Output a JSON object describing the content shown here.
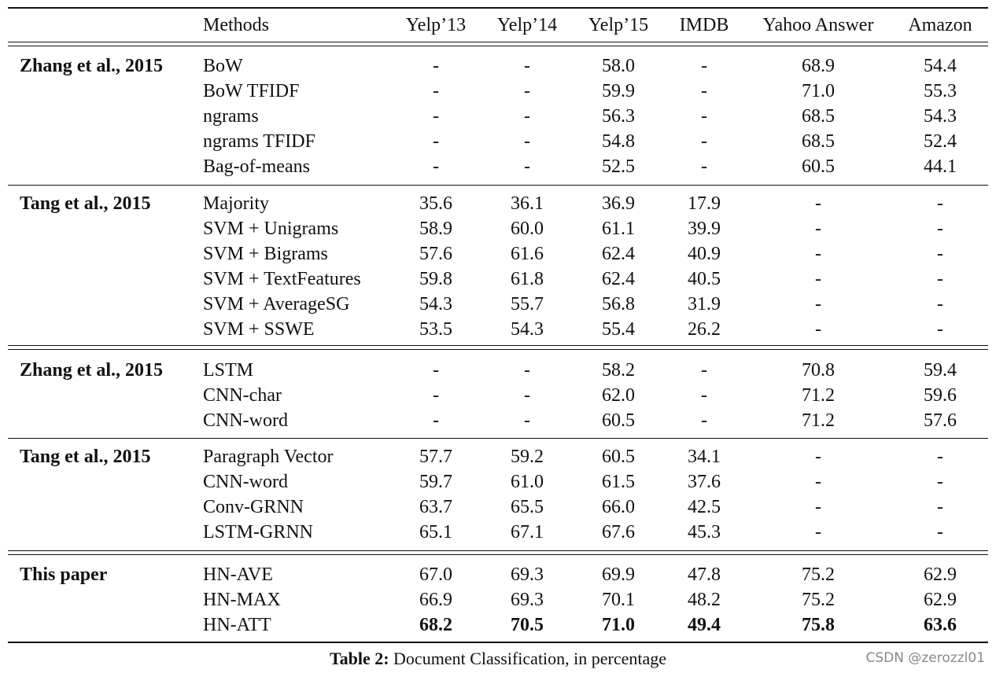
{
  "table": {
    "headers": [
      "Methods",
      "Yelp’13",
      "Yelp’14",
      "Yelp’15",
      "IMDB",
      "Yahoo Answer",
      "Amazon"
    ],
    "groups": [
      {
        "label": "Zhang et al., 2015",
        "rows": [
          {
            "method": "BoW",
            "values": [
              "-",
              "-",
              "58.0",
              "-",
              "68.9",
              "54.4"
            ]
          },
          {
            "method": "BoW TFIDF",
            "values": [
              "-",
              "-",
              "59.9",
              "-",
              "71.0",
              "55.3"
            ]
          },
          {
            "method": "ngrams",
            "values": [
              "-",
              "-",
              "56.3",
              "-",
              "68.5",
              "54.3"
            ]
          },
          {
            "method": "ngrams TFIDF",
            "values": [
              "-",
              "-",
              "54.8",
              "-",
              "68.5",
              "52.4"
            ]
          },
          {
            "method": "Bag-of-means",
            "values": [
              "-",
              "-",
              "52.5",
              "-",
              "60.5",
              "44.1"
            ]
          }
        ]
      },
      {
        "label": "Tang et al., 2015",
        "rows": [
          {
            "method": "Majority",
            "values": [
              "35.6",
              "36.1",
              "36.9",
              "17.9",
              "-",
              "-"
            ]
          },
          {
            "method": "SVM + Unigrams",
            "values": [
              "58.9",
              "60.0",
              "61.1",
              "39.9",
              "-",
              "-"
            ]
          },
          {
            "method": "SVM + Bigrams",
            "values": [
              "57.6",
              "61.6",
              "62.4",
              "40.9",
              "-",
              "-"
            ]
          },
          {
            "method": "SVM + TextFeatures",
            "values": [
              "59.8",
              "61.8",
              "62.4",
              "40.5",
              "-",
              "-"
            ]
          },
          {
            "method": "SVM + AverageSG",
            "values": [
              "54.3",
              "55.7",
              "56.8",
              "31.9",
              "-",
              "-"
            ]
          },
          {
            "method": "SVM + SSWE",
            "values": [
              "53.5",
              "54.3",
              "55.4",
              "26.2",
              "-",
              "-"
            ]
          }
        ]
      },
      {
        "label": "Zhang et al., 2015",
        "rows": [
          {
            "method": "LSTM",
            "values": [
              "-",
              "-",
              "58.2",
              "-",
              "70.8",
              "59.4"
            ]
          },
          {
            "method": "CNN-char",
            "values": [
              "-",
              "-",
              "62.0",
              "-",
              "71.2",
              "59.6"
            ]
          },
          {
            "method": "CNN-word",
            "values": [
              "-",
              "-",
              "60.5",
              "-",
              "71.2",
              "57.6"
            ]
          }
        ]
      },
      {
        "label": "Tang et al., 2015",
        "rows": [
          {
            "method": "Paragraph Vector",
            "values": [
              "57.7",
              "59.2",
              "60.5",
              "34.1",
              "-",
              "-"
            ]
          },
          {
            "method": "CNN-word",
            "values": [
              "59.7",
              "61.0",
              "61.5",
              "37.6",
              "-",
              "-"
            ]
          },
          {
            "method": "Conv-GRNN",
            "values": [
              "63.7",
              "65.5",
              "66.0",
              "42.5",
              "-",
              "-"
            ]
          },
          {
            "method": "LSTM-GRNN",
            "values": [
              "65.1",
              "67.1",
              "67.6",
              "45.3",
              "-",
              "-"
            ]
          }
        ]
      },
      {
        "label": "This paper",
        "rows": [
          {
            "method": "HN-AVE",
            "values": [
              "67.0",
              "69.3",
              "69.9",
              "47.8",
              "75.2",
              "62.9"
            ]
          },
          {
            "method": "HN-MAX",
            "values": [
              "66.9",
              "69.3",
              "70.1",
              "48.2",
              "75.2",
              "62.9"
            ]
          },
          {
            "method": "HN-ATT",
            "values": [
              "68.2",
              "70.5",
              "71.0",
              "49.4",
              "75.8",
              "63.6"
            ],
            "bold": true
          }
        ]
      }
    ]
  },
  "caption": {
    "label": "Table 2:",
    "text": " Document Classification, in percentage"
  },
  "watermark": "CSDN @zerozzl01"
}
